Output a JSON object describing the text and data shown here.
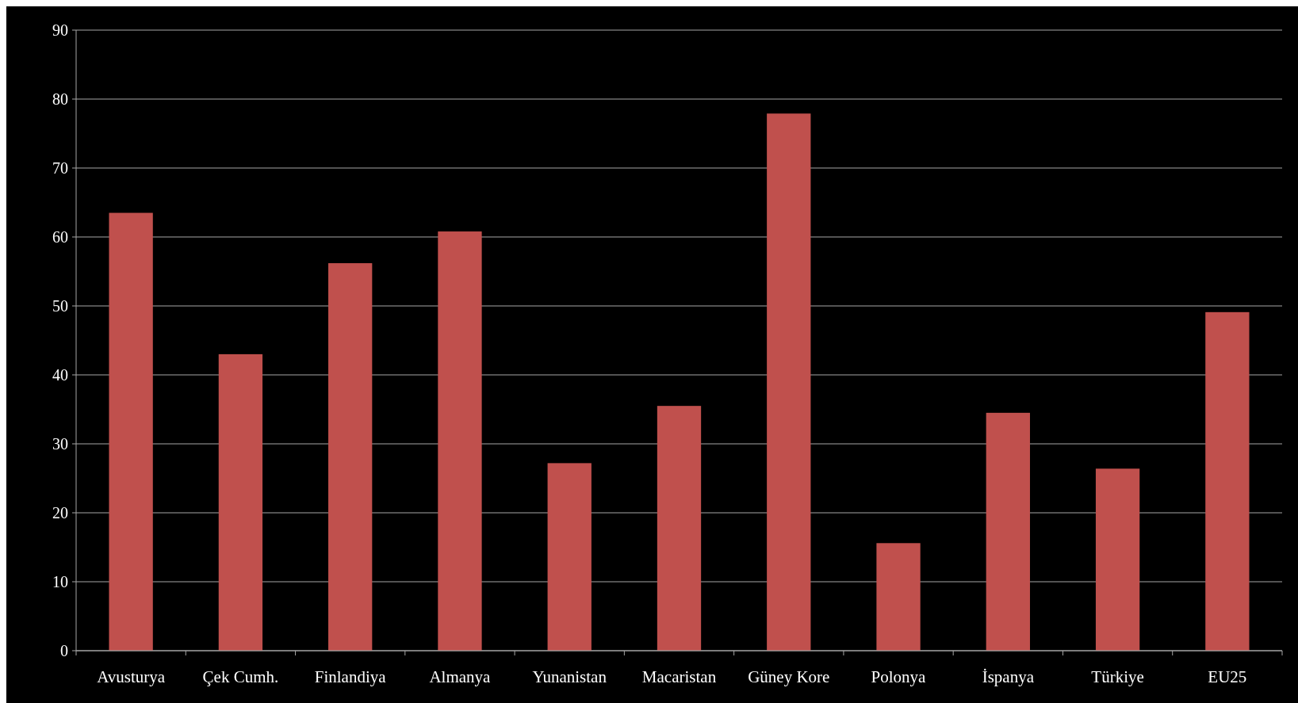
{
  "chart_data": {
    "type": "bar",
    "categories": [
      "Avusturya",
      "Çek Cumh.",
      "Finlandiya",
      "Almanya",
      "Yunanistan",
      "Macaristan",
      "Güney Kore",
      "Polonya",
      "İspanya",
      "Türkiye",
      "EU25"
    ],
    "values": [
      63.5,
      43,
      56.2,
      60.8,
      27.2,
      35.5,
      77.9,
      15.6,
      34.5,
      26.4,
      49.1
    ],
    "color": "#c0504d",
    "ylim": [
      0,
      90
    ],
    "yticks": [
      0,
      10,
      20,
      30,
      40,
      50,
      60,
      70,
      80,
      90
    ],
    "grid": "y"
  }
}
